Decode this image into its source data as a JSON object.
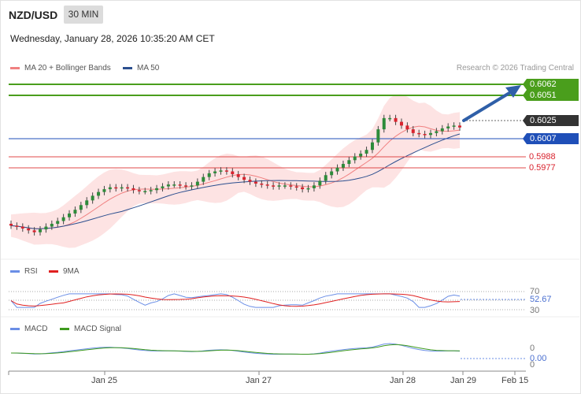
{
  "header": {
    "symbol": "NZD/USD",
    "timeframe": "30 MIN",
    "datetime": "Wednesday, January 28, 2026 10:35:20 AM CET"
  },
  "legend": {
    "ma20_bb": "MA 20 + Bollinger Bands",
    "ma50": "MA 50"
  },
  "credit": "Research © 2026 Trading Central",
  "levels": {
    "r2": "0.6062",
    "r1": "0.6051",
    "last": "0.6025",
    "pivot": "0.6007",
    "s1": "0.5988",
    "s2": "0.5977"
  },
  "rsi": {
    "label": "RSI",
    "ma_label": "9MA",
    "upper": "70",
    "value": "52.67",
    "lower": "30"
  },
  "macd": {
    "label": "MACD",
    "signal_label": "MACD Signal",
    "zero_top": "0",
    "value": "0.00",
    "zero_bottom": "0"
  },
  "x_axis": [
    "Jan 25",
    "Jan 27",
    "Jan 28",
    "Jan 29",
    "Feb 15"
  ],
  "colors": {
    "bullish": "#2e8b3a",
    "bearish": "#d9232e",
    "resistance": "#4a9e1c",
    "pivot": "#1f4fb8",
    "support": "#e04848",
    "last": "#333333",
    "ma20": "#f08080",
    "bands_fill": "#fde3e3",
    "ma50": "#2c4f8f",
    "rsi_line": "#6a8ee6",
    "rsi_ma": "#e02020",
    "macd_line": "#6a8ee6",
    "macd_signal": "#3e9a1e",
    "arrow": "#2f5fa8"
  },
  "chart_data": {
    "type": "candlestick",
    "symbol": "NZD/USD",
    "interval": "30 MIN",
    "x_ticks": [
      "Jan 25",
      "Jan 27",
      "Jan 28",
      "Jan 29",
      "Feb 15"
    ],
    "ylim": [
      0.5893,
      0.608
    ],
    "closes": [
      0.5923,
      0.5922,
      0.592,
      0.5918,
      0.5916,
      0.5919,
      0.5922,
      0.5925,
      0.5928,
      0.5932,
      0.5936,
      0.594,
      0.5945,
      0.595,
      0.5955,
      0.5959,
      0.5962,
      0.5964,
      0.5963,
      0.5964,
      0.5963,
      0.5961,
      0.596,
      0.596,
      0.5961,
      0.5963,
      0.5965,
      0.5967,
      0.5967,
      0.5966,
      0.5965,
      0.5966,
      0.597,
      0.5975,
      0.5979,
      0.5981,
      0.5982,
      0.5981,
      0.5978,
      0.5975,
      0.5972,
      0.597,
      0.5968,
      0.5967,
      0.5966,
      0.5965,
      0.5966,
      0.5966,
      0.5965,
      0.5964,
      0.5962,
      0.5963,
      0.5966,
      0.5971,
      0.5977,
      0.5981,
      0.5985,
      0.5989,
      0.5993,
      0.5997,
      0.6,
      0.6004,
      0.6012,
      0.6026,
      0.6038,
      0.6038,
      0.6034,
      0.603,
      0.6026,
      0.6022,
      0.6021,
      0.602,
      0.6022,
      0.6024,
      0.6027,
      0.6029,
      0.603,
      0.6028
    ],
    "levels": {
      "resistance": [
        0.6062,
        0.6051
      ],
      "last": 0.6025,
      "pivot": 0.6007,
      "support": [
        0.5988,
        0.5977
      ]
    },
    "indicators": {
      "rsi": {
        "last": 52.67,
        "overbought": 70,
        "oversold": 30
      },
      "macd": {
        "last": 0.0
      }
    }
  }
}
